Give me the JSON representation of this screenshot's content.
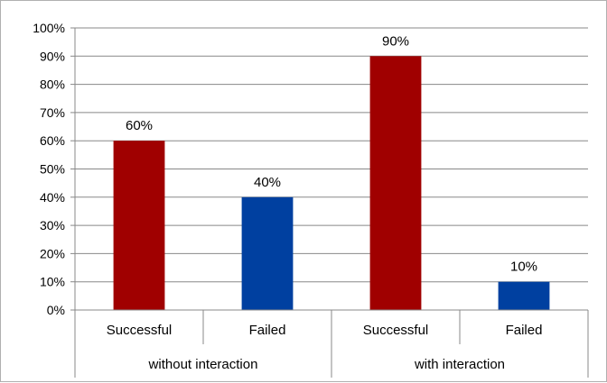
{
  "chart_data": {
    "type": "bar",
    "groups": [
      {
        "label": "without interaction",
        "bars": [
          {
            "category": "Successful",
            "value": 60,
            "label": "60%",
            "color": "#a00000"
          },
          {
            "category": "Failed",
            "value": 40,
            "label": "40%",
            "color": "#0040a0"
          }
        ]
      },
      {
        "label": "with  interaction",
        "bars": [
          {
            "category": "Successful",
            "value": 90,
            "label": "90%",
            "color": "#a00000"
          },
          {
            "category": "Failed",
            "value": 10,
            "label": "10%",
            "color": "#0040a0"
          }
        ]
      }
    ],
    "yticks": [
      "0%",
      "10%",
      "20%",
      "30%",
      "40%",
      "50%",
      "60%",
      "70%",
      "80%",
      "90%",
      "100%"
    ],
    "ylim": [
      0,
      100
    ],
    "grid": true,
    "legend": "none"
  }
}
